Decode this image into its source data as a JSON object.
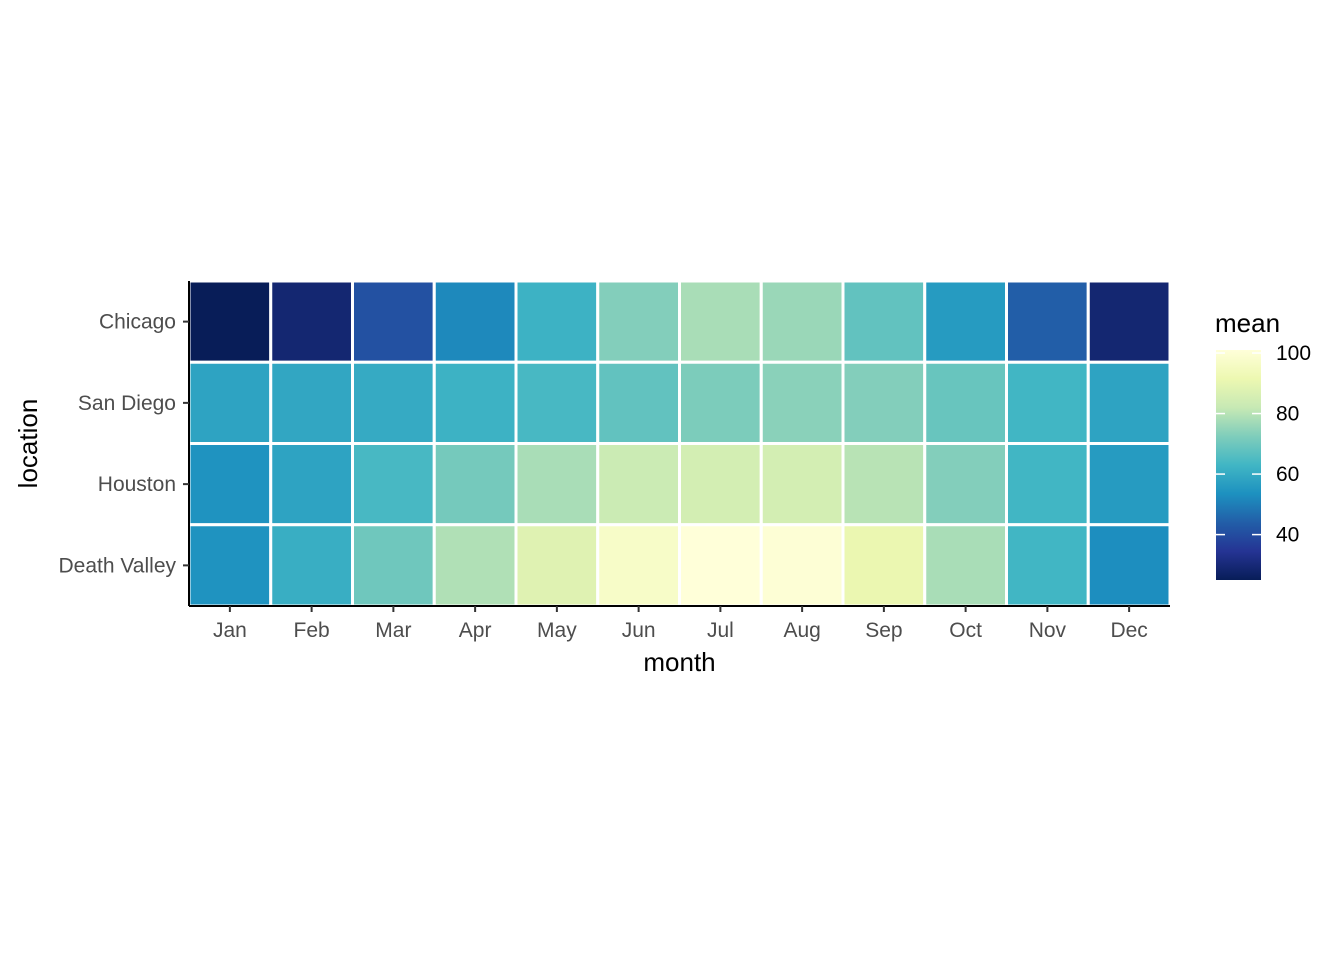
{
  "chart_data": {
    "type": "heatmap",
    "x_title": "month",
    "y_title": "location",
    "x_categories": [
      "Jan",
      "Feb",
      "Mar",
      "Apr",
      "May",
      "Jun",
      "Jul",
      "Aug",
      "Sep",
      "Oct",
      "Nov",
      "Dec"
    ],
    "y_categories": [
      "Chicago",
      "San Diego",
      "Houston",
      "Death Valley"
    ],
    "values": [
      [
        25,
        29,
        41,
        52,
        62,
        73,
        78,
        76,
        68,
        56,
        44,
        29
      ],
      [
        58,
        59,
        60,
        62,
        64,
        68,
        72,
        74,
        73,
        69,
        63,
        58
      ],
      [
        54,
        58,
        64,
        71,
        78,
        83,
        85,
        85,
        80,
        73,
        63,
        56
      ],
      [
        54,
        61,
        70,
        79,
        88,
        97,
        101,
        100,
        91,
        78,
        63,
        53
      ]
    ],
    "grid": false,
    "colorscale": {
      "name": "YlGnBu",
      "domain": [
        25,
        101
      ],
      "stops": [
        "#081d58",
        "#253494",
        "#225ea8",
        "#1d91c0",
        "#41b6c4",
        "#7fcdbb",
        "#c7e9b4",
        "#edf8b1",
        "#ffffd9"
      ]
    },
    "legend": {
      "title": "mean",
      "position": "right",
      "ticks": [
        40,
        60,
        80,
        100
      ]
    },
    "cell_border_color": "#ffffff",
    "axis_line_color": "#000000"
  }
}
